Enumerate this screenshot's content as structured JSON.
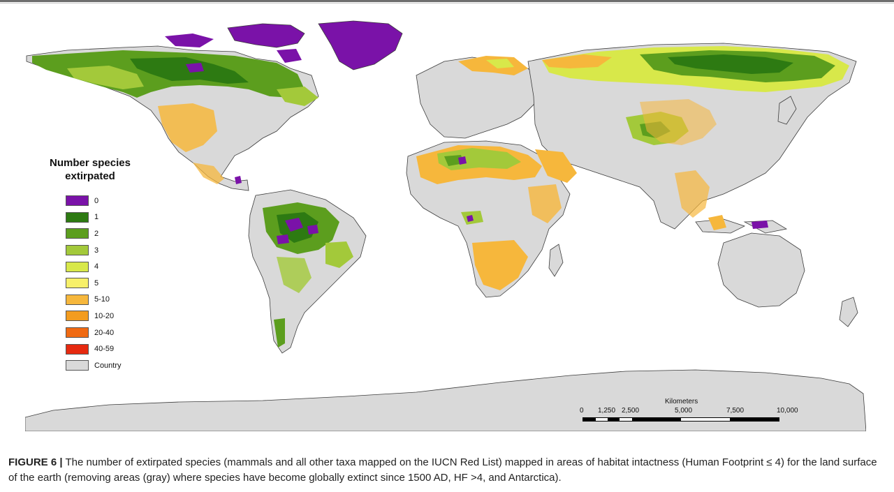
{
  "legend": {
    "title": "Number species extirpated",
    "items": [
      {
        "label": "0",
        "color": "#7a12a8"
      },
      {
        "label": "1",
        "color": "#2d7a12"
      },
      {
        "label": "2",
        "color": "#5c9e1e"
      },
      {
        "label": "3",
        "color": "#a3c93a"
      },
      {
        "label": "4",
        "color": "#d8e84a"
      },
      {
        "label": "5",
        "color": "#f7f06a"
      },
      {
        "label": "5-10",
        "color": "#f6b73c"
      },
      {
        "label": "10-20",
        "color": "#f39c1f"
      },
      {
        "label": "20-40",
        "color": "#f06a12"
      },
      {
        "label": "40-59",
        "color": "#e62a10"
      },
      {
        "label": "Country",
        "color": "#d9d9d9"
      }
    ]
  },
  "scale": {
    "title": "Kilometers",
    "ticks": [
      "0",
      "1,250",
      "2,500",
      "5,000",
      "7,500",
      "10,000"
    ]
  },
  "caption": {
    "label": "FIGURE 6 |",
    "text": " The number of extirpated species (mammals and all other taxa mapped on the IUCN Red List) mapped in areas of habitat intactness (Human Footprint ≤ 4) for the land surface of the earth (removing areas (gray) where species have become globally extinct since 1500 AD, HF >4, and Antarctica)."
  },
  "colors": {
    "country": "#d9d9d9",
    "border": "#3c3c3c"
  }
}
